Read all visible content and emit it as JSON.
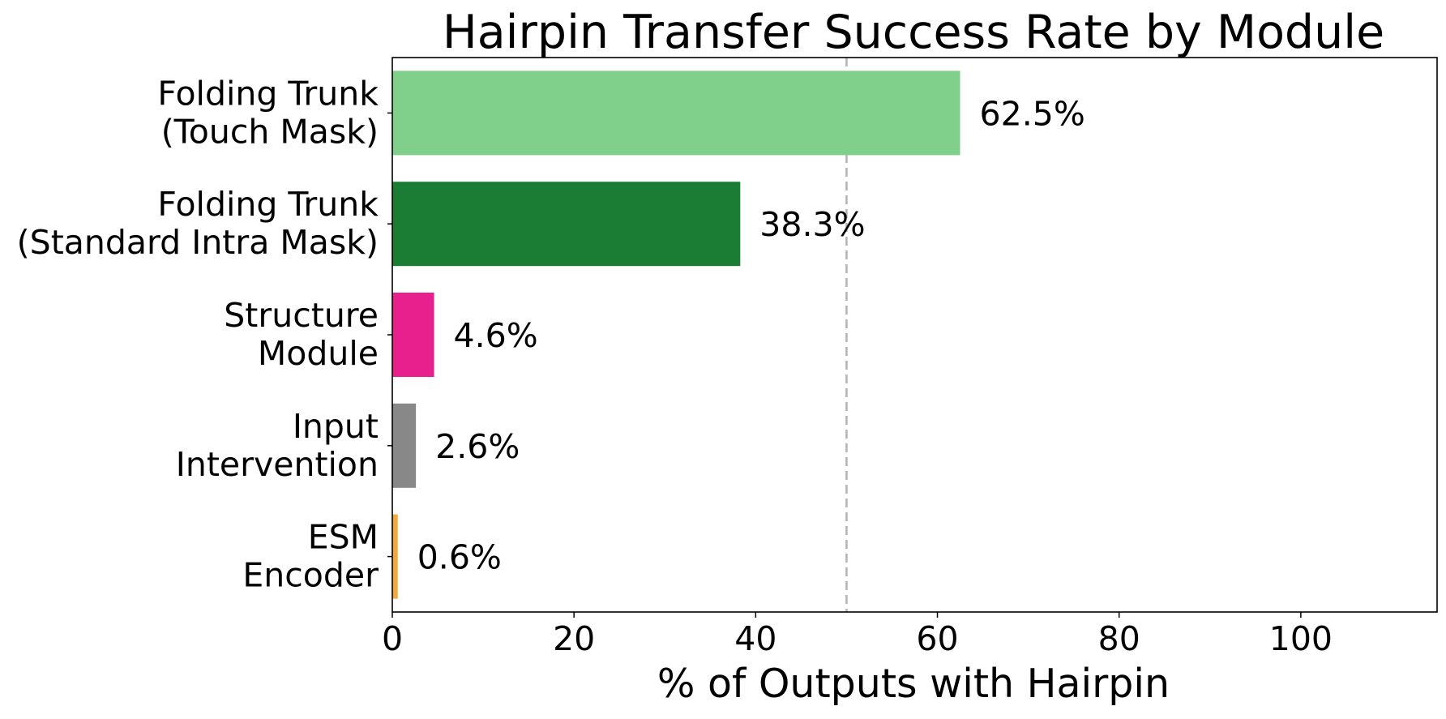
{
  "chart_data": {
    "type": "bar",
    "orientation": "horizontal",
    "title": "Hairpin Transfer Success Rate by Module",
    "xlabel": "% of Outputs with Hairpin",
    "ylabel": "",
    "xlim": [
      0,
      115
    ],
    "x_ticks": [
      0,
      20,
      40,
      60,
      80,
      100
    ],
    "grid": false,
    "reference_line": {
      "x": 50,
      "style": "dashed",
      "color": "#b3b3b3"
    },
    "categories": [
      [
        "Folding Trunk",
        "(Touch Mask)"
      ],
      [
        "Folding Trunk",
        "(Standard Intra Mask)"
      ],
      [
        "Structure",
        "Module"
      ],
      [
        "Input",
        "Intervention"
      ],
      [
        "ESM",
        "Encoder"
      ]
    ],
    "values": [
      62.5,
      38.3,
      4.6,
      2.6,
      0.6
    ],
    "value_labels": [
      "62.5%",
      "38.3%",
      "4.6%",
      "2.6%",
      "0.6%"
    ],
    "colors": [
      "#80cf8a",
      "#1b7d34",
      "#e7208d",
      "#888888",
      "#f3a93a"
    ]
  }
}
